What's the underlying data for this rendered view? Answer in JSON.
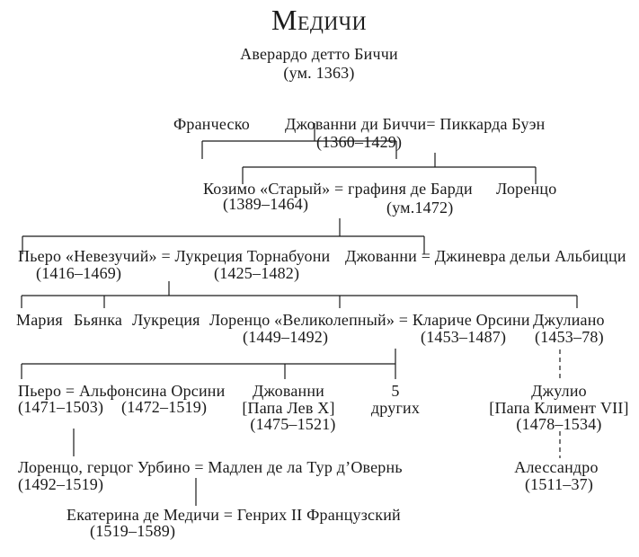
{
  "title": "Медичи",
  "gen1": {
    "name": "Аверардо детто Биччи",
    "dates": "(ум. 1363)"
  },
  "gen2": {
    "francesco": "Франческо",
    "giovanni_couple": "Джованни ди Биччи= Пиккарда Буэн",
    "giovanni_dates": "(1360–1429)"
  },
  "gen3": {
    "cosimo_couple": "Козимо «Старый» = графиня де Барди",
    "cosimo_dates": "(1389–1464)",
    "bardi_dates": "(ум.1472)",
    "lorenzo": "Лоренцо"
  },
  "gen4": {
    "piero_couple": "Пьеро «Невезучий» = Лукреция Торнабуони",
    "piero_dates": "(1416–1469)",
    "lucrezia_dates": "(1425–1482)",
    "giovanni_couple": "Джованни = Джиневра дельи Альбицци"
  },
  "gen5": {
    "maria": "Мария",
    "bianca": "Бьянка",
    "lucrezia": "Лукреция",
    "lorenzo_couple": "Лоренцо «Великолепный» = Клариче Орсини",
    "lorenzo_dates": "(1449–1492)",
    "clarice_dates": "(1453–1487)",
    "giuliano": "Джулиано",
    "giuliano_dates": "(1453–78)"
  },
  "gen6": {
    "piero_couple": "Пьеро = Альфонсина Орсини",
    "piero_dates": "(1471–1503)",
    "alfonsina_dates": "(1472–1519)",
    "giovanni": "Джованни",
    "giovanni_title": "[Папа Лев X]",
    "giovanni_dates": "(1475–1521)",
    "others_count": "5",
    "others_label": "других",
    "giulio": "Джулио",
    "giulio_title": "[Папа Климент VII]",
    "giulio_dates": "(1478–1534)"
  },
  "gen7": {
    "lorenzo_couple": "Лоренцо, герцог Урбино = Мадлен де ла Тур д’Овернь",
    "lorenzo_dates": "(1492–1519)",
    "alessandro": "Алессандро",
    "alessandro_dates": "(1511–37)"
  },
  "gen8": {
    "caterina_couple": "Екатерина де Медичи = Генрих II Французский",
    "caterina_dates": "(1519–1589)"
  }
}
